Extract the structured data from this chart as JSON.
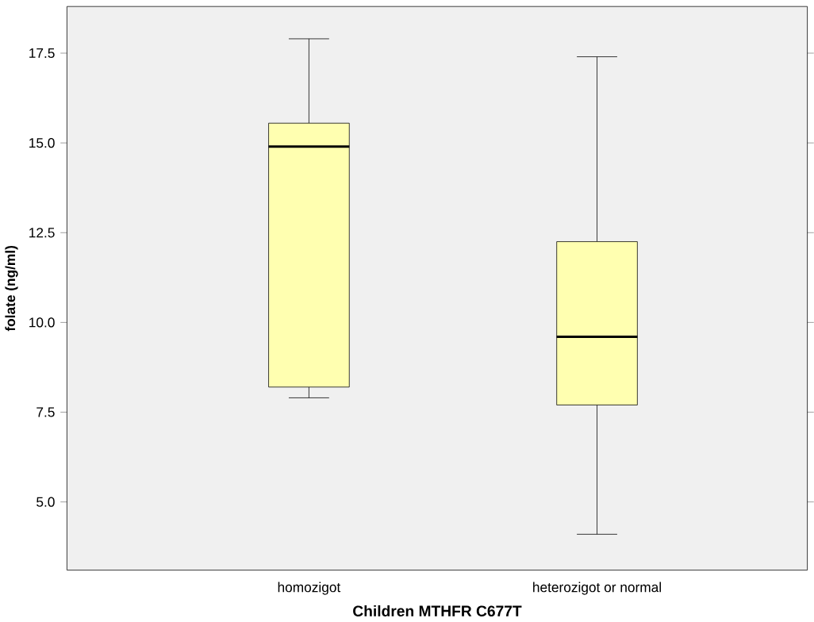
{
  "chart_data": {
    "type": "box",
    "xlabel": "Children MTHFR C677T",
    "ylabel": "folate (ng/ml)",
    "categories": [
      "homozigot",
      "heterozigot or normal"
    ],
    "series": [
      {
        "color": "#ffffb0",
        "boxes": [
          {
            "low": 7.9,
            "q1": 8.2,
            "median": 14.9,
            "q3": 15.55,
            "high": 17.9
          },
          {
            "low": 4.1,
            "q1": 7.7,
            "median": 9.6,
            "q3": 12.25,
            "high": 17.4
          }
        ]
      }
    ],
    "ylim": [
      3.1,
      18.8
    ],
    "yticks": [
      {
        "value": 5,
        "label": "5.0"
      },
      7.5,
      {
        "value": 10,
        "label": "10.0"
      },
      12.5,
      {
        "value": 15,
        "label": "15.0"
      },
      17.5
    ],
    "grid": false
  }
}
